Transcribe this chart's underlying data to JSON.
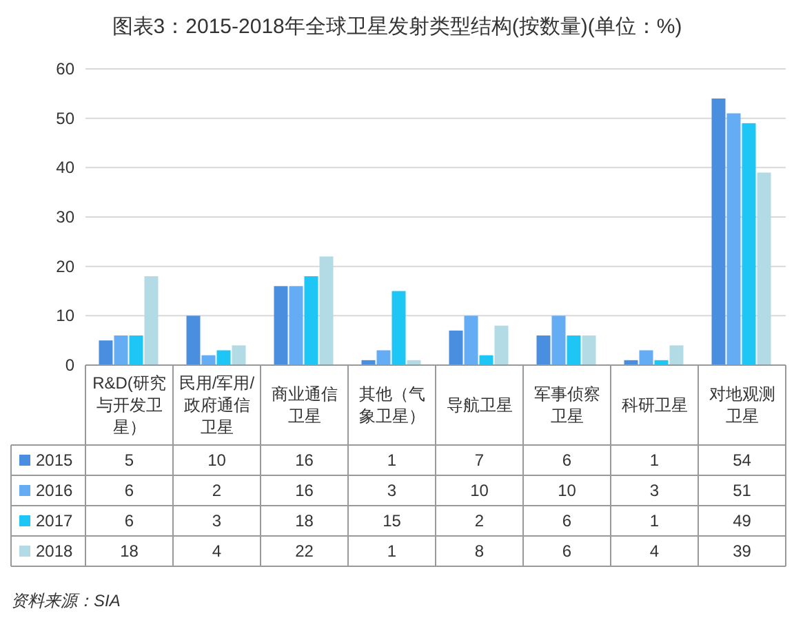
{
  "chart_data": {
    "type": "bar",
    "title": "图表3：2015-2018年全球卫星发射类型结构(按数量)(单位：%)",
    "categories": [
      "R&D(研究与开发卫星）",
      "民用/军用/政府通信卫星",
      "商业通信卫星",
      "其他（气象卫星）",
      "导航卫星",
      "军事侦察卫星",
      "科研卫星",
      "对地观测卫星"
    ],
    "series": [
      {
        "name": "2015",
        "color": "#4a8ee0",
        "values": [
          5,
          10,
          16,
          1,
          7,
          6,
          1,
          54
        ]
      },
      {
        "name": "2016",
        "color": "#64acf4",
        "values": [
          6,
          2,
          16,
          3,
          10,
          10,
          3,
          51
        ]
      },
      {
        "name": "2017",
        "color": "#1ec6f6",
        "values": [
          6,
          3,
          18,
          15,
          2,
          6,
          1,
          49
        ]
      },
      {
        "name": "2018",
        "color": "#b2dbe6",
        "values": [
          18,
          4,
          22,
          1,
          8,
          6,
          4,
          39
        ]
      }
    ],
    "ylim": [
      0,
      60
    ],
    "yticks": [
      0,
      10,
      20,
      30,
      40,
      50,
      60
    ],
    "grid": "y",
    "legend": "bottom",
    "data_labels": true,
    "annotations": [
      "资料来源：SIA"
    ]
  }
}
